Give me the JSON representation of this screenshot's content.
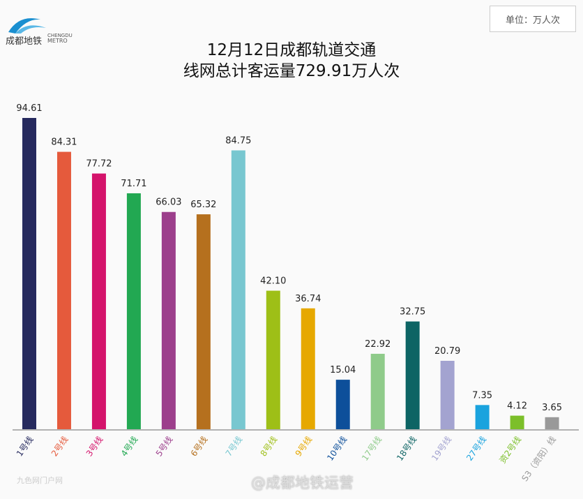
{
  "logo": {
    "cn": "成都地铁",
    "en1": "CHENGDU",
    "en2": "METRO"
  },
  "unit_label": "单位：万人次",
  "watermark": "@成都地铁运营",
  "watermark2": "九色网门户网",
  "chart_data": {
    "type": "bar",
    "title": "12月12日成都轨道交通",
    "subtitle": "线网总计客运量729.91万人次",
    "xlabel": "",
    "ylabel": "万人次",
    "ylim": [
      0,
      100
    ],
    "grid": false,
    "categories": [
      "1号线",
      "2号线",
      "3号线",
      "4号线",
      "5号线",
      "6号线",
      "7号线",
      "8号线",
      "9号线",
      "10号线",
      "17号线",
      "18号线",
      "19号线",
      "27号线",
      "资2号线",
      "S3（资阳）线"
    ],
    "values": [
      94.61,
      84.31,
      77.72,
      71.71,
      66.03,
      65.32,
      84.75,
      42.1,
      36.74,
      15.04,
      22.92,
      32.75,
      20.79,
      7.35,
      4.12,
      3.65
    ],
    "value_labels": [
      "94.61",
      "84.31",
      "77.72",
      "71.71",
      "66.03",
      "65.32",
      "84.75",
      "42.10",
      "36.74",
      "15.04",
      "22.92",
      "32.75",
      "20.79",
      "7.35",
      "4.12",
      "3.65"
    ],
    "colors": [
      "#262a5e",
      "#e55a3c",
      "#d4136b",
      "#22a852",
      "#9c3f8c",
      "#b5701e",
      "#78c7d0",
      "#9ebf17",
      "#e6a800",
      "#0d4f9a",
      "#8fcb8a",
      "#0d6464",
      "#a3a3d0",
      "#1aa3de",
      "#7cbf2a",
      "#999999"
    ]
  }
}
